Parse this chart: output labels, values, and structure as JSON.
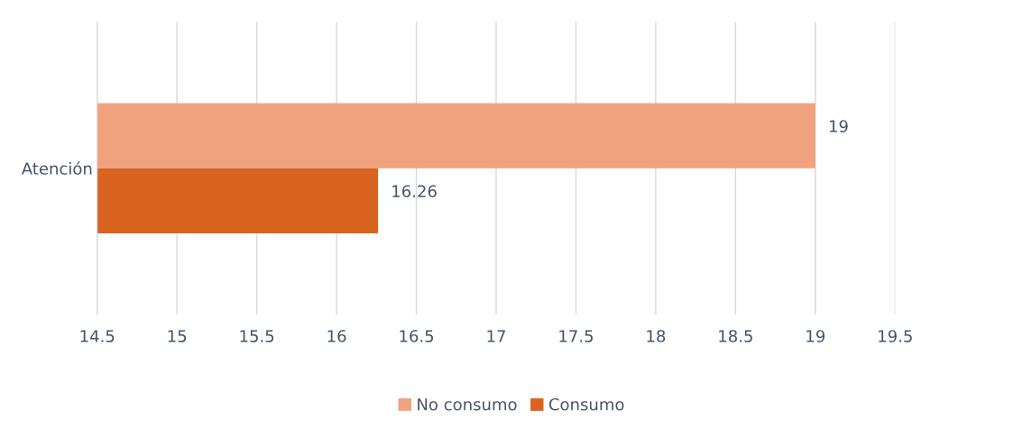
{
  "chart_data": {
    "type": "bar",
    "orientation": "horizontal",
    "categories": [
      "Atención"
    ],
    "series": [
      {
        "name": "No consumo",
        "color": "#f0a27f",
        "values": [
          19
        ]
      },
      {
        "name": "Consumo",
        "color": "#d8641f",
        "values": [
          16.26
        ]
      }
    ],
    "xlim": [
      14.5,
      19.5
    ],
    "xticks": [
      14.5,
      15,
      15.5,
      16,
      16.5,
      17,
      17.5,
      18,
      18.5,
      19,
      19.5
    ],
    "data_labels": true,
    "grid": "x",
    "legend": "bottom"
  }
}
